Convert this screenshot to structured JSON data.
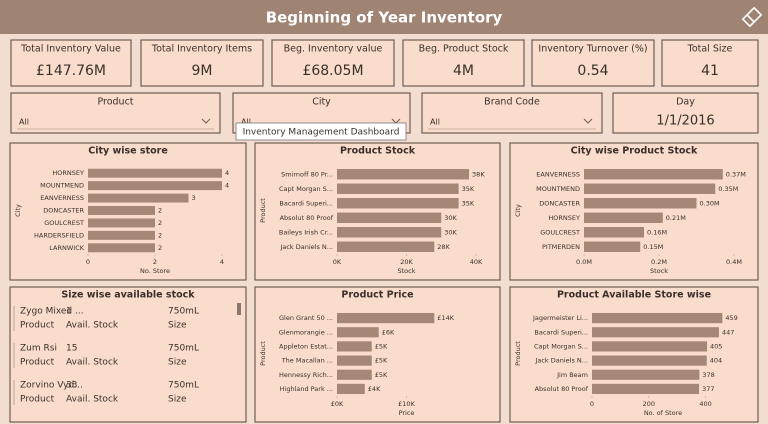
{
  "header": {
    "title": "Beginning of Year Inventory"
  },
  "kpis": [
    {
      "label": "Total Inventory Value",
      "value": "£147.76M"
    },
    {
      "label": "Total Inventory Items",
      "value": "9M"
    },
    {
      "label": "Beg. Inventory value",
      "value": "£68.05M"
    },
    {
      "label": "Beg. Product Stock",
      "value": "4M"
    },
    {
      "label": "Inventory Turnover (%)",
      "value": "0.54"
    },
    {
      "label": "Total Size",
      "value": "41"
    }
  ],
  "slicers": [
    {
      "label": "Product",
      "value": "All"
    },
    {
      "label": "City",
      "value": "All"
    },
    {
      "label": "Brand Code",
      "value": "All"
    },
    {
      "label": "Day",
      "value": "1/1/2016"
    }
  ],
  "tooltip": "Inventory Management Dashboard",
  "charts": [
    {
      "type": "bar",
      "title": "City wise store",
      "x_label": "No. Store",
      "y_label": "City",
      "categories": [
        "HORNSEY",
        "MOUNTMEND",
        "EANVERNESS",
        "DONCASTER",
        "GOULCREST",
        "HARDERSFIELD",
        "LARNWICK"
      ],
      "values": [
        4,
        4,
        3,
        2,
        2,
        2,
        2
      ],
      "xlim": [
        0,
        4
      ],
      "xticks": [
        0,
        2,
        4
      ],
      "color": "#a58775"
    },
    {
      "type": "bar",
      "title": "Product Stock",
      "x_label": "Stock",
      "y_label": "Product",
      "categories": [
        "Smirnoff 80 Pr...",
        "Capt Morgan S...",
        "Bacardi Superi...",
        "Absolut 80 Proof",
        "Baileys Irish Cr...",
        "Jack Daniels N..."
      ],
      "values": [
        38000,
        35000,
        35000,
        30000,
        30000,
        28000
      ],
      "value_labels": [
        "38K",
        "35K",
        "35K",
        "30K",
        "30K",
        "28K"
      ],
      "xlim": [
        0,
        40000
      ],
      "xticks": [
        {
          "value": 0,
          "label": "0K"
        },
        {
          "value": 20000,
          "label": "20K"
        },
        {
          "value": 40000,
          "label": "40K"
        }
      ],
      "color": "#a58775"
    },
    {
      "type": "bar",
      "title": "City wise Product Stock",
      "x_label": "Stock",
      "y_label": "City",
      "categories": [
        "EANVERNESS",
        "MOUNTMEND",
        "DONCASTER",
        "HORNSEY",
        "GOULCREST",
        "PITMERDEN"
      ],
      "values": [
        370000,
        350000,
        300000,
        210000,
        160000,
        150000
      ],
      "value_labels": [
        "0.37M",
        "0.35M",
        "0.30M",
        "0.21M",
        "0.16M",
        "0.15M"
      ],
      "xlim": [
        0,
        400000
      ],
      "xticks": [
        {
          "value": 0,
          "label": "0.0M"
        },
        {
          "value": 200000,
          "label": "0.2M"
        },
        {
          "value": 400000,
          "label": "0.4M"
        }
      ],
      "color": "#a58775"
    },
    {
      "type": "bar",
      "title": "Product Price",
      "x_label": "Price",
      "y_label": "Product",
      "categories": [
        "Glen Grant 50 ...",
        "Glenmorangie ...",
        "Appleton Estat...",
        "The Macallan ...",
        "Hennessy Rich...",
        "Highland Park ..."
      ],
      "values": [
        14000,
        6000,
        5000,
        5000,
        5000,
        4000
      ],
      "value_labels": [
        "£14K",
        "£6K",
        "£5K",
        "£5K",
        "£5K",
        "£4K"
      ],
      "xlim": [
        0,
        20000
      ],
      "xticks": [
        {
          "value": 0,
          "label": "£0K"
        },
        {
          "value": 10000,
          "label": "£10K"
        }
      ],
      "color": "#a58775"
    },
    {
      "type": "bar",
      "title": "Product Available Store wise",
      "x_label": "No. of Store",
      "y_label": "Product",
      "categories": [
        "Jagermeister Li...",
        "Bacardi Superi...",
        "Capt Morgan S...",
        "Jack Daniels N...",
        "Jim Beam",
        "Absolut 80 Proof"
      ],
      "values": [
        459,
        447,
        405,
        404,
        378,
        377
      ],
      "xlim": [
        0,
        500
      ],
      "xticks": [
        0,
        200,
        400
      ],
      "color": "#a58775"
    }
  ],
  "table": {
    "title": "Size wise available stock",
    "columns": [
      "Product",
      "Avail. Stock",
      "Size"
    ],
    "rows": [
      [
        "Zygo Mixed ...",
        "1",
        "750mL"
      ],
      [
        "Zum Rsi",
        "15",
        "750mL"
      ],
      [
        "Zorvino Vyd...",
        "33",
        "750mL"
      ]
    ]
  }
}
